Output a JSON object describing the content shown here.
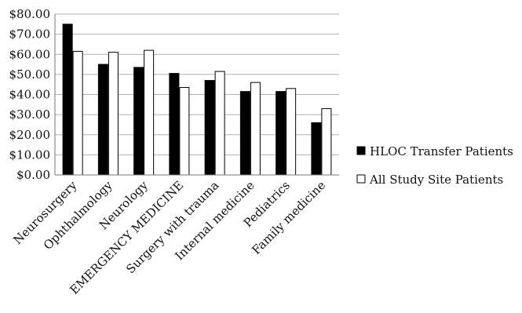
{
  "chart_data": {
    "type": "bar",
    "categories": [
      "Neurosurgery",
      "Ophthalmology",
      "Neurology",
      "EMERGENCY MEDICINE",
      "Surgery with trauma",
      "Internal medicine",
      "Pediatrics",
      "Family medicine"
    ],
    "series": [
      {
        "name": "HLOC Transfer Patients",
        "color": "#000000",
        "values": [
          75,
          55,
          53.5,
          50.5,
          47,
          41.5,
          41.5,
          26
        ]
      },
      {
        "name": "All Study Site Patients",
        "color": "#ffffff",
        "values": [
          61.5,
          61,
          62,
          43.5,
          51.5,
          46,
          43,
          33
        ]
      }
    ],
    "ylim": [
      0,
      80
    ],
    "yticks": [
      "$0.00",
      "$10.00",
      "$20.00",
      "$30.00",
      "$40.00",
      "$50.00",
      "$60.00",
      "$70.00",
      "$80.00"
    ],
    "grid": true,
    "legend_position": "right"
  }
}
